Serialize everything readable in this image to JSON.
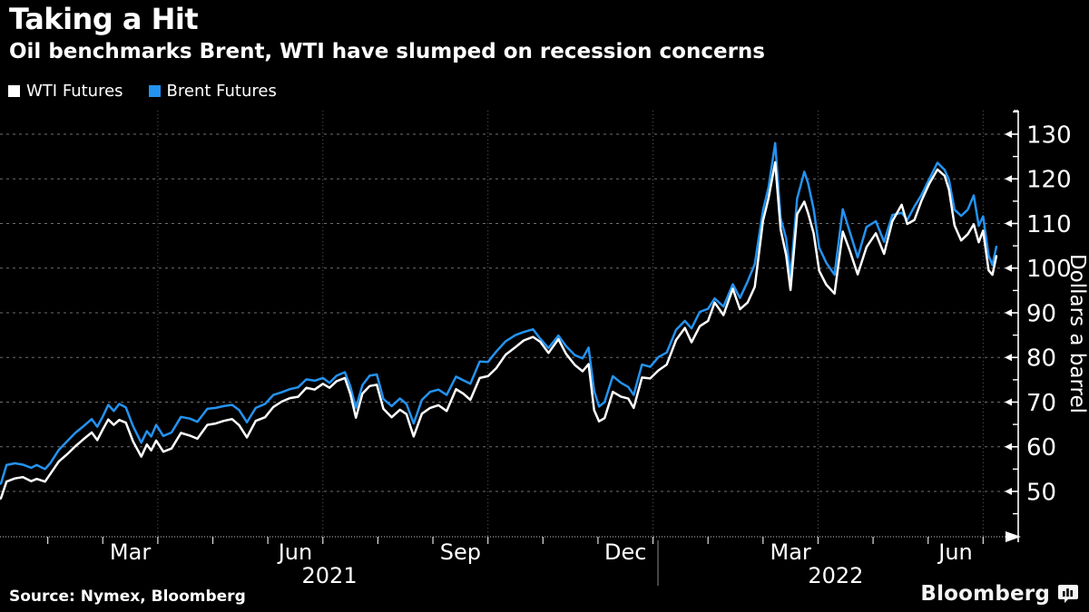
{
  "header": {
    "title": "Taking a Hit",
    "subtitle": "Oil benchmarks Brent, WTI have slumped on recession concerns"
  },
  "legend": [
    {
      "label": "WTI Futures",
      "color": "#ffffff"
    },
    {
      "label": "Brent Futures",
      "color": "#2493f0"
    }
  ],
  "source": "Source: Nymex, Bloomberg",
  "branding": {
    "logo_text": "Bloomberg",
    "logo_icon": "bar-chart-bubble-icon"
  },
  "chart_data": {
    "type": "line",
    "title": "Taking a Hit",
    "subtitle": "Oil benchmarks Brent, WTI have slumped on recession concerns",
    "ylabel": "Dollars a barrel",
    "xlabel": "",
    "x_unit": "months since 2021-01-01 (fractional)",
    "x_range_months": [
      0,
      18.58
    ],
    "ylim": [
      40,
      135
    ],
    "y_ticks": [
      50,
      60,
      70,
      80,
      90,
      100,
      110,
      120,
      130
    ],
    "y_minor_ticks": [
      45,
      55,
      65,
      75,
      85,
      95,
      105,
      115,
      125,
      135
    ],
    "grid": "dashed-horizontal-and-quarterly-vertical",
    "quarter_grid_m": [
      3,
      6,
      9,
      12,
      15,
      18
    ],
    "month_tick_m": [
      1,
      2,
      3,
      4,
      5,
      6,
      7,
      8,
      9,
      10,
      11,
      12,
      13,
      14,
      15,
      16,
      17,
      18
    ],
    "x_labels": [
      {
        "label": "Mar",
        "m": 2.5
      },
      {
        "label": "Jun",
        "m": 5.5
      },
      {
        "label": "Sep",
        "m": 8.5
      },
      {
        "label": "Dec",
        "m": 11.5
      },
      {
        "label": "Mar",
        "m": 14.5
      },
      {
        "label": "Jun",
        "m": 17.5
      }
    ],
    "year_labels": [
      {
        "label": "2021",
        "m": 6.12
      },
      {
        "label": "2022",
        "m": 15.32
      }
    ],
    "year_divider_m": 12.09,
    "legend_position": "top-left",
    "x": [
      0.05,
      0.15,
      0.25,
      0.4,
      0.55,
      0.7,
      0.8,
      0.95,
      1.05,
      1.2,
      1.35,
      1.5,
      1.65,
      1.8,
      1.9,
      2.0,
      2.1,
      2.2,
      2.3,
      2.42,
      2.55,
      2.7,
      2.8,
      2.88,
      2.97,
      3.1,
      3.25,
      3.42,
      3.58,
      3.72,
      3.9,
      4.05,
      4.2,
      4.35,
      4.48,
      4.62,
      4.78,
      4.95,
      5.1,
      5.25,
      5.4,
      5.55,
      5.7,
      5.85,
      6.0,
      6.12,
      6.25,
      6.4,
      6.5,
      6.6,
      6.72,
      6.85,
      6.98,
      7.1,
      7.25,
      7.4,
      7.52,
      7.65,
      7.8,
      7.95,
      8.1,
      8.25,
      8.42,
      8.55,
      8.68,
      8.85,
      9.0,
      9.15,
      9.32,
      9.5,
      9.65,
      9.82,
      9.95,
      10.1,
      10.28,
      10.42,
      10.58,
      10.72,
      10.83,
      10.93,
      11.02,
      11.12,
      11.27,
      11.42,
      11.55,
      11.65,
      11.8,
      11.95,
      12.1,
      12.25,
      12.42,
      12.58,
      12.7,
      12.85,
      13.0,
      13.12,
      13.28,
      13.45,
      13.58,
      13.72,
      13.85,
      14.0,
      14.1,
      14.22,
      14.32,
      14.42,
      14.5,
      14.62,
      14.75,
      14.82,
      14.92,
      15.02,
      15.15,
      15.3,
      15.45,
      15.58,
      15.72,
      15.88,
      16.05,
      16.2,
      16.35,
      16.52,
      16.62,
      16.75,
      16.88,
      17.02,
      17.17,
      17.3,
      17.38,
      17.48,
      17.6,
      17.72,
      17.83,
      17.92,
      18.0,
      18.1,
      18.17,
      18.24
    ],
    "series": [
      {
        "name": "WTI Futures",
        "color": "#ffffff",
        "values": [
          47.8,
          48.5,
          52.2,
          52.9,
          53.2,
          52.3,
          52.8,
          52.2,
          54.0,
          56.7,
          58.3,
          60.1,
          61.7,
          63.2,
          61.5,
          63.9,
          66.1,
          64.9,
          66.0,
          65.4,
          61.2,
          57.8,
          60.5,
          59.2,
          61.4,
          58.9,
          59.6,
          63.1,
          62.5,
          61.8,
          64.9,
          65.2,
          65.8,
          66.2,
          64.8,
          62.1,
          65.8,
          66.6,
          68.9,
          70.1,
          70.9,
          71.2,
          73.2,
          72.8,
          74.1,
          73.2,
          74.7,
          75.4,
          71.8,
          66.5,
          71.9,
          73.6,
          73.9,
          68.5,
          66.6,
          68.3,
          67.3,
          62.3,
          67.4,
          68.7,
          69.3,
          68.0,
          72.9,
          71.9,
          70.5,
          75.4,
          75.8,
          77.6,
          80.6,
          82.3,
          83.8,
          84.6,
          83.5,
          81.0,
          84.1,
          80.8,
          78.3,
          76.9,
          78.5,
          68.2,
          65.7,
          66.4,
          72.3,
          71.2,
          70.8,
          68.7,
          75.5,
          75.3,
          77.1,
          78.4,
          83.9,
          86.6,
          83.4,
          87.0,
          88.2,
          92.3,
          89.5,
          95.4,
          90.8,
          92.3,
          95.8,
          110.6,
          115.7,
          123.7,
          108.7,
          102.9,
          95.1,
          112.1,
          114.9,
          112.3,
          107.8,
          99.4,
          96.3,
          94.3,
          108.2,
          103.8,
          98.6,
          104.7,
          107.8,
          103.2,
          110.5,
          114.2,
          109.9,
          110.8,
          115.1,
          118.9,
          122.1,
          120.7,
          117.6,
          109.6,
          106.2,
          107.6,
          109.8,
          105.8,
          108.4,
          99.5,
          98.5,
          102.7
        ]
      },
      {
        "name": "Brent Futures",
        "color": "#2493f0",
        "values": [
          51.2,
          51.8,
          55.9,
          56.3,
          56.0,
          55.3,
          55.9,
          55.0,
          56.4,
          59.3,
          61.2,
          63.1,
          64.6,
          66.2,
          64.5,
          66.8,
          69.4,
          68.0,
          69.6,
          68.8,
          64.6,
          60.9,
          63.5,
          62.3,
          64.9,
          62.4,
          63.2,
          66.7,
          66.3,
          65.6,
          68.5,
          68.7,
          69.1,
          69.4,
          68.2,
          65.5,
          68.7,
          69.6,
          71.6,
          72.2,
          72.9,
          73.3,
          75.1,
          74.8,
          75.4,
          74.3,
          75.9,
          76.7,
          73.5,
          68.7,
          73.8,
          75.9,
          76.2,
          70.7,
          69.1,
          70.8,
          69.6,
          65.2,
          70.5,
          72.3,
          72.8,
          71.6,
          75.7,
          74.9,
          74.1,
          79.1,
          79.0,
          81.3,
          83.6,
          85.0,
          85.7,
          86.3,
          84.2,
          82.1,
          84.9,
          82.5,
          80.5,
          79.8,
          82.2,
          72.5,
          69.0,
          70.0,
          75.8,
          74.3,
          73.4,
          71.6,
          78.4,
          77.9,
          80.1,
          81.1,
          86.2,
          88.2,
          86.5,
          90.2,
          90.9,
          93.2,
          91.4,
          96.4,
          93.3,
          97.0,
          100.9,
          113.0,
          118.1,
          128.0,
          111.2,
          106.6,
          98.0,
          115.6,
          121.6,
          119.0,
          113.2,
          104.6,
          101.2,
          98.5,
          113.2,
          108.0,
          102.4,
          109.2,
          110.5,
          105.9,
          111.9,
          112.4,
          110.8,
          113.8,
          116.4,
          119.9,
          123.6,
          122.0,
          119.8,
          113.1,
          111.7,
          113.1,
          116.3,
          109.5,
          111.6,
          102.8,
          100.7,
          104.8
        ]
      }
    ]
  }
}
